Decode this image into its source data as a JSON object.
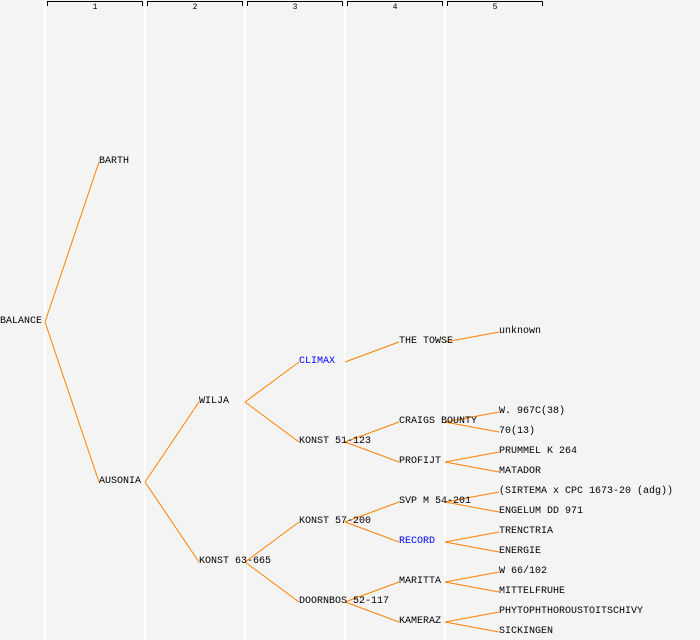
{
  "generations": [
    "1",
    "2",
    "3",
    "4",
    "5"
  ],
  "colors": {
    "line": "#ff8000",
    "highlight": "#0000ff",
    "text": "#000000"
  },
  "tree": {
    "name": "BALANCE",
    "parents": [
      {
        "name": "BARTH",
        "parents": []
      },
      {
        "name": "AUSONIA",
        "parents": [
          {
            "name": "WILJA",
            "parents": [
              {
                "name": "CLIMAX",
                "highlight": true,
                "parents": [
                  {
                    "name": "THE TOWSE",
                    "parents": [
                      {
                        "name": "unknown"
                      }
                    ]
                  }
                ]
              },
              {
                "name": "KONST 51-123",
                "parents": [
                  {
                    "name": "CRAIGS BOUNTY",
                    "parents": [
                      {
                        "name": "W. 967C(38)"
                      },
                      {
                        "name": "70(13)"
                      }
                    ]
                  },
                  {
                    "name": "PROFIJT",
                    "parents": [
                      {
                        "name": "PRUMMEL K 264"
                      },
                      {
                        "name": "MATADOR"
                      }
                    ]
                  }
                ]
              }
            ]
          },
          {
            "name": "KONST 63-665",
            "parents": [
              {
                "name": "KONST 57-200",
                "parents": [
                  {
                    "name": "SVP M 54-201",
                    "parents": [
                      {
                        "name": "(SIRTEMA x CPC 1673-20 (adg))"
                      },
                      {
                        "name": "ENGELUM DD 971"
                      }
                    ]
                  },
                  {
                    "name": "RECORD",
                    "highlight": true,
                    "parents": [
                      {
                        "name": "TRENCTRIA"
                      },
                      {
                        "name": "ENERGIE"
                      }
                    ]
                  }
                ]
              },
              {
                "name": "DOORNBOS 52-117",
                "parents": [
                  {
                    "name": "MARITTA",
                    "parents": [
                      {
                        "name": "W 66/102"
                      },
                      {
                        "name": "MITTELFRUHE"
                      }
                    ]
                  },
                  {
                    "name": "KAMERAZ",
                    "parents": [
                      {
                        "name": "PHYTOPHTHOROUSTOITSCHIVY"
                      },
                      {
                        "name": "SICKINGEN"
                      }
                    ]
                  }
                ]
              }
            ]
          }
        ]
      }
    ]
  }
}
